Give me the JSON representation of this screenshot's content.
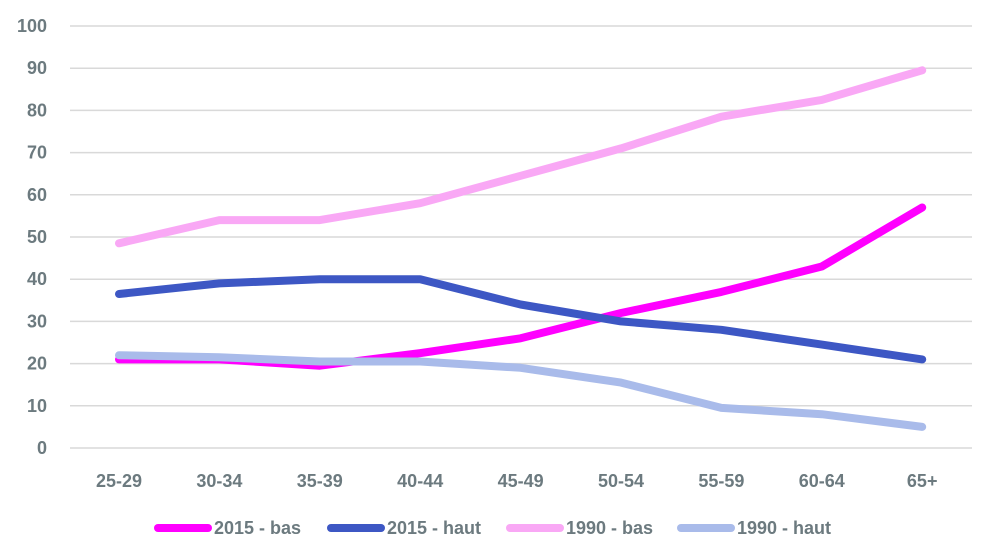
{
  "chart_data": {
    "type": "line",
    "title": "",
    "xlabel": "",
    "ylabel": "",
    "categories": [
      "25-29",
      "30-34",
      "35-39",
      "40-44",
      "45-49",
      "50-54",
      "55-59",
      "60-64",
      "65+"
    ],
    "ylim": [
      0,
      100
    ],
    "yticks": [
      0,
      10,
      20,
      30,
      40,
      50,
      60,
      70,
      80,
      90,
      100
    ],
    "grid": true,
    "legend_position": "bottom",
    "series": [
      {
        "name": "2015 - bas",
        "color": "#ff00ff",
        "values": [
          21,
          21,
          19.5,
          22.5,
          26,
          32,
          37,
          43,
          57
        ]
      },
      {
        "name": "2015 - haut",
        "color": "#3d57c4",
        "values": [
          36.5,
          39,
          40,
          40,
          34,
          30,
          28,
          24.5,
          21
        ]
      },
      {
        "name": "1990 - bas",
        "color": "#f9a8f5",
        "values": [
          48.5,
          54,
          54,
          58,
          64.5,
          71,
          78.5,
          82.5,
          89.5
        ]
      },
      {
        "name": "1990 - haut",
        "color": "#a9bbea",
        "values": [
          22,
          21.5,
          20.5,
          20.5,
          19,
          15.5,
          9.5,
          8,
          5
        ]
      }
    ]
  }
}
